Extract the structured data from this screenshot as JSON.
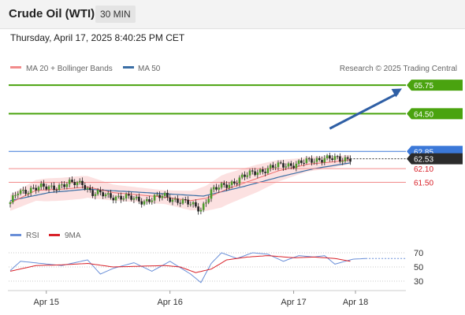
{
  "header": {
    "title": "Crude Oil (WTI)",
    "timeframe": "30 MIN",
    "datetime": "Thursday, April 17, 2025 8:40:25 PM CET"
  },
  "legend": {
    "ma20": "MA 20 + Bollinger Bands",
    "ma50": "MA 50",
    "credit": "Research © 2025 Trading Central"
  },
  "colors": {
    "target": "#4aa30f",
    "pivot": "#3b78d8",
    "support": "#f28b8b",
    "current": "#2b2b2b",
    "ma20": "#f07070",
    "ma50": "#3a6ea5",
    "band": "#fbdcdc",
    "arrow": "#2f5fa5",
    "rsi": "#6a8fd8",
    "rsi_ma": "#d9222a"
  },
  "levels": [
    {
      "label": "65.75",
      "value": 65.75,
      "kind": "target"
    },
    {
      "label": "64.50",
      "value": 64.5,
      "kind": "target"
    },
    {
      "label": "62.85",
      "value": 62.85,
      "kind": "pivot"
    },
    {
      "label": "62.53",
      "value": 62.53,
      "kind": "current"
    },
    {
      "label": "62.10",
      "value": 62.1,
      "kind": "support"
    },
    {
      "label": "61.50",
      "value": 61.5,
      "kind": "support"
    }
  ],
  "rsi_panel": {
    "legend_rsi": "RSI",
    "legend_ma": "9MA",
    "ticks": [
      {
        "label": "70",
        "value": 70
      },
      {
        "label": "50",
        "value": 50
      },
      {
        "label": "30",
        "value": 30
      }
    ]
  },
  "x_labels": [
    {
      "label": "Apr 15",
      "t": 14
    },
    {
      "label": "Apr 16",
      "t": 62
    },
    {
      "label": "Apr 17",
      "t": 110
    },
    {
      "label": "Apr 18",
      "t": 134
    }
  ],
  "chart_data": {
    "type": "candlestick",
    "title": "Crude Oil (WTI)",
    "ylim": [
      59.9,
      66.2
    ],
    "xlim": [
      0,
      145
    ],
    "price_key": [
      [
        0,
        60.55
      ],
      [
        3,
        61.1
      ],
      [
        8,
        61.2
      ],
      [
        16,
        61.3
      ],
      [
        28,
        61.5
      ],
      [
        32,
        61.0
      ],
      [
        40,
        60.9
      ],
      [
        52,
        60.7
      ],
      [
        60,
        60.9
      ],
      [
        68,
        60.6
      ],
      [
        74,
        60.35
      ],
      [
        78,
        61.1
      ],
      [
        86,
        61.5
      ],
      [
        96,
        62.0
      ],
      [
        106,
        62.25
      ],
      [
        116,
        62.4
      ],
      [
        122,
        62.6
      ],
      [
        128,
        62.45
      ],
      [
        132,
        62.6
      ]
    ],
    "ma20_key": [
      [
        0,
        60.6
      ],
      [
        10,
        61.15
      ],
      [
        20,
        61.2
      ],
      [
        30,
        61.3
      ],
      [
        40,
        61.05
      ],
      [
        50,
        60.95
      ],
      [
        60,
        60.85
      ],
      [
        70,
        60.7
      ],
      [
        76,
        60.8
      ],
      [
        84,
        61.2
      ],
      [
        94,
        61.6
      ],
      [
        104,
        62.0
      ],
      [
        116,
        62.3
      ],
      [
        126,
        62.4
      ],
      [
        132,
        62.5
      ]
    ],
    "ma50_key": [
      [
        0,
        60.7
      ],
      [
        15,
        61.05
      ],
      [
        30,
        61.2
      ],
      [
        45,
        61.1
      ],
      [
        60,
        61.0
      ],
      [
        75,
        60.9
      ],
      [
        90,
        61.3
      ],
      [
        105,
        61.75
      ],
      [
        118,
        62.1
      ],
      [
        132,
        62.35
      ]
    ],
    "band_width_key": [
      [
        0,
        0.35
      ],
      [
        14,
        0.5
      ],
      [
        28,
        0.5
      ],
      [
        40,
        0.35
      ],
      [
        60,
        0.3
      ],
      [
        72,
        0.45
      ],
      [
        82,
        0.7
      ],
      [
        96,
        0.6
      ],
      [
        112,
        0.35
      ],
      [
        132,
        0.2
      ]
    ],
    "rsi_key": [
      [
        0,
        45
      ],
      [
        4,
        58
      ],
      [
        12,
        55
      ],
      [
        20,
        52
      ],
      [
        30,
        60
      ],
      [
        35,
        40
      ],
      [
        40,
        48
      ],
      [
        48,
        56
      ],
      [
        55,
        44
      ],
      [
        62,
        58
      ],
      [
        70,
        40
      ],
      [
        74,
        28
      ],
      [
        78,
        55
      ],
      [
        82,
        70
      ],
      [
        88,
        62
      ],
      [
        94,
        70
      ],
      [
        100,
        68
      ],
      [
        106,
        58
      ],
      [
        112,
        66
      ],
      [
        118,
        64
      ],
      [
        122,
        66
      ],
      [
        126,
        54
      ],
      [
        130,
        58
      ],
      [
        133,
        61
      ],
      [
        138,
        62
      ]
    ],
    "rsi_ma_key": [
      [
        0,
        44
      ],
      [
        10,
        52
      ],
      [
        20,
        53
      ],
      [
        30,
        55
      ],
      [
        40,
        50
      ],
      [
        50,
        51
      ],
      [
        60,
        52
      ],
      [
        66,
        50
      ],
      [
        72,
        42
      ],
      [
        78,
        47
      ],
      [
        84,
        60
      ],
      [
        92,
        64
      ],
      [
        100,
        66
      ],
      [
        110,
        63
      ],
      [
        118,
        64
      ],
      [
        126,
        62
      ],
      [
        132,
        58
      ]
    ]
  }
}
